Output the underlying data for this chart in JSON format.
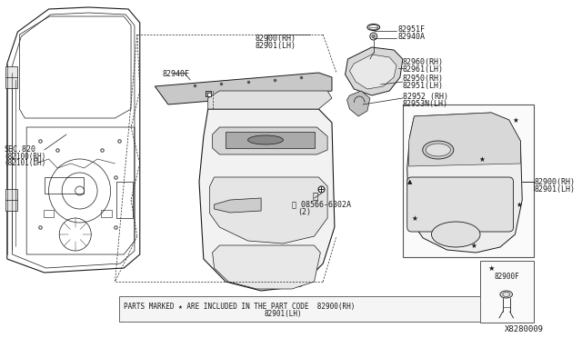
{
  "bg_color": "#ffffff",
  "fig_width": 6.4,
  "fig_height": 3.72,
  "diagram_id": "X8280009",
  "text_color": "#1a1a1a",
  "line_color": "#1a1a1a",
  "note_text": "PARTS MARKED ★ ARE INCLUDED IN THE PART CODE",
  "note_parts_1": "82900(RH)",
  "note_parts_2": "82901(LH)",
  "labels": {
    "sec820": "SEC.820",
    "sec820a": "(82100(RH)",
    "sec820b": "(82101(LH)",
    "l82940F": "82940F",
    "l82900rh": "82900(RH)",
    "l82901lh": "82901(LH)",
    "l82951F": "82951F",
    "l82940A": "82940A",
    "l82960rh": "82960(RH)",
    "l82961lh": "82961(LH)",
    "l82950rh": "82950(RH)",
    "l82951lh": "82951(LH)",
    "l82952rh": "82952 (RH)",
    "l82953lh": "82953N(LH)",
    "l08566": "08566-6302A",
    "l08566b": "(2)",
    "l82900F": "82900F",
    "l82900rh2": "82900(RH)",
    "l82901lh2": "82901(LH)",
    "l82900rh3": "82900(RH)",
    "l82901lh3": "82901(LH)"
  }
}
